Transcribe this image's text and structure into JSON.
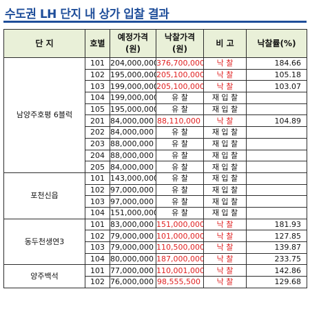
{
  "title": "수도권 LH 단지 내 상가 입찰 결과",
  "headers": {
    "complex": "단 지",
    "unit": "호별",
    "planned_line1": "예정가격",
    "planned_line2": "(원)",
    "winning_line1": "낙찰가격",
    "winning_line2": "(원)",
    "remark": "비 고",
    "rate": "낙찰률(%)"
  },
  "colors": {
    "red": "#e02020",
    "header_bg": "#e9f0d8",
    "title": "#1f4e9a"
  },
  "groups": [
    {
      "name": "남양주호평 6블럭",
      "rows": [
        {
          "unit": "101",
          "planned": "204,000,000",
          "winning": "376,700,000",
          "winning_red": true,
          "remark": "낙 찰",
          "remark_red": true,
          "rate": "184.66"
        },
        {
          "unit": "102",
          "planned": "195,000,000",
          "winning": "205,100,000",
          "winning_red": true,
          "remark": "낙 찰",
          "remark_red": true,
          "rate": "105.18"
        },
        {
          "unit": "103",
          "planned": "199,000,000",
          "winning": "205,100,000",
          "winning_red": true,
          "remark": "낙 찰",
          "remark_red": true,
          "rate": "103.07"
        },
        {
          "unit": "104",
          "planned": "199,000,000",
          "winning": "유 찰",
          "winning_red": false,
          "remark": "재 입 찰",
          "remark_red": false,
          "rate": ""
        },
        {
          "unit": "105",
          "planned": "195,000,000",
          "winning": "유 찰",
          "winning_red": false,
          "remark": "재 입 찰",
          "remark_red": false,
          "rate": ""
        },
        {
          "unit": "201",
          "planned": "84,000,000",
          "winning": "88,110,000",
          "winning_red": true,
          "remark": "낙 찰",
          "remark_red": true,
          "rate": "104.89"
        },
        {
          "unit": "202",
          "planned": "84,000,000",
          "winning": "유 찰",
          "winning_red": false,
          "remark": "재 입 찰",
          "remark_red": false,
          "rate": ""
        },
        {
          "unit": "203",
          "planned": "88,000,000",
          "winning": "유 찰",
          "winning_red": false,
          "remark": "재 입 찰",
          "remark_red": false,
          "rate": ""
        },
        {
          "unit": "204",
          "planned": "88,000,000",
          "winning": "유 찰",
          "winning_red": false,
          "remark": "재 입 찰",
          "remark_red": false,
          "rate": ""
        },
        {
          "unit": "205",
          "planned": "84,000,000",
          "winning": "유 찰",
          "winning_red": false,
          "remark": "재 입 찰",
          "remark_red": false,
          "rate": ""
        }
      ]
    },
    {
      "name": "포천신읍",
      "rows": [
        {
          "unit": "101",
          "planned": "143,000,000",
          "winning": "유 찰",
          "winning_red": false,
          "remark": "재 입 찰",
          "remark_red": false,
          "rate": ""
        },
        {
          "unit": "102",
          "planned": "97,000,000",
          "winning": "유 찰",
          "winning_red": false,
          "remark": "재 입 찰",
          "remark_red": false,
          "rate": ""
        },
        {
          "unit": "103",
          "planned": "97,000,000",
          "winning": "유 찰",
          "winning_red": false,
          "remark": "재 입 찰",
          "remark_red": false,
          "rate": ""
        },
        {
          "unit": "104",
          "planned": "151,000,000",
          "winning": "유 찰",
          "winning_red": false,
          "remark": "재 입 찰",
          "remark_red": false,
          "rate": ""
        }
      ]
    },
    {
      "name": "동두천생연3",
      "rows": [
        {
          "unit": "101",
          "planned": "83,000,000",
          "winning": "151,000,000",
          "winning_red": true,
          "remark": "낙 찰",
          "remark_red": true,
          "rate": "181.93"
        },
        {
          "unit": "102",
          "planned": "79,000,000",
          "winning": "101,000,000",
          "winning_red": true,
          "remark": "낙 찰",
          "remark_red": true,
          "rate": "127.85"
        },
        {
          "unit": "103",
          "planned": "79,000,000",
          "winning": "110,500,000",
          "winning_red": true,
          "remark": "낙 찰",
          "remark_red": true,
          "rate": "139.87"
        },
        {
          "unit": "104",
          "planned": "80,000,000",
          "winning": "187,000,000",
          "winning_red": true,
          "remark": "낙 찰",
          "remark_red": true,
          "rate": "233.75"
        }
      ]
    },
    {
      "name": "양주백석",
      "rows": [
        {
          "unit": "101",
          "planned": "77,000,000",
          "winning": "110,001,000",
          "winning_red": true,
          "remark": "낙 찰",
          "remark_red": true,
          "rate": "142.86"
        },
        {
          "unit": "102",
          "planned": "76,000,000",
          "winning": "98,555,500",
          "winning_red": true,
          "remark": "낙 찰",
          "remark_red": true,
          "rate": "129.68"
        }
      ]
    }
  ]
}
